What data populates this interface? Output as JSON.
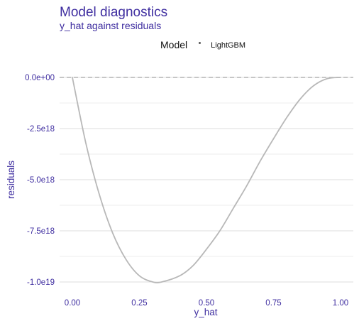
{
  "chart_data": {
    "type": "line",
    "title": "Model diagnostics",
    "subtitle": "y_hat against residuals",
    "xlabel": "y_hat",
    "ylabel": "residuals",
    "xlim": [
      -0.02,
      1.04
    ],
    "ylim": [
      -1e+19,
      0.0
    ],
    "x_ticks": [
      0,
      0.25,
      0.5,
      0.75,
      1.0
    ],
    "x_tick_labels": [
      "0.00",
      "0.25",
      "0.50",
      "0.75",
      "1.00"
    ],
    "y_ticks": [
      0,
      -2.5e+18,
      -5e+18,
      -7.5e+18,
      -1e+19
    ],
    "y_tick_labels": [
      "0.0e+00",
      "-2.5e18",
      "-5.0e18",
      "-7.5e18",
      "-1.0e19"
    ],
    "grid": true,
    "reference_line": {
      "y": 0,
      "style": "dashed",
      "color": "#b3b3b3"
    },
    "legend": {
      "title": "Model",
      "position": "top"
    },
    "series": [
      {
        "name": "LightGBM",
        "color": "#b8b8b8",
        "x": [
          0.0,
          0.05,
          0.1,
          0.15,
          0.2,
          0.25,
          0.3,
          0.333,
          0.4,
          0.45,
          0.5,
          0.55,
          0.6,
          0.65,
          0.7,
          0.75,
          0.8,
          0.85,
          0.9,
          0.95,
          1.0
        ],
        "y": [
          0,
          -3.2e+18,
          -5.7e+18,
          -7.6e+18,
          -8.9e+18,
          -9.7e+18,
          -1e+19,
          -1e+19,
          -9.7e+18,
          -9.2e+18,
          -8.4e+18,
          -7.5e+18,
          -6.4e+18,
          -5.3e+18,
          -4.1e+18,
          -3e+18,
          -1.95e+18,
          -1.05e+18,
          -4e+17,
          -6e+16,
          0
        ]
      }
    ]
  }
}
